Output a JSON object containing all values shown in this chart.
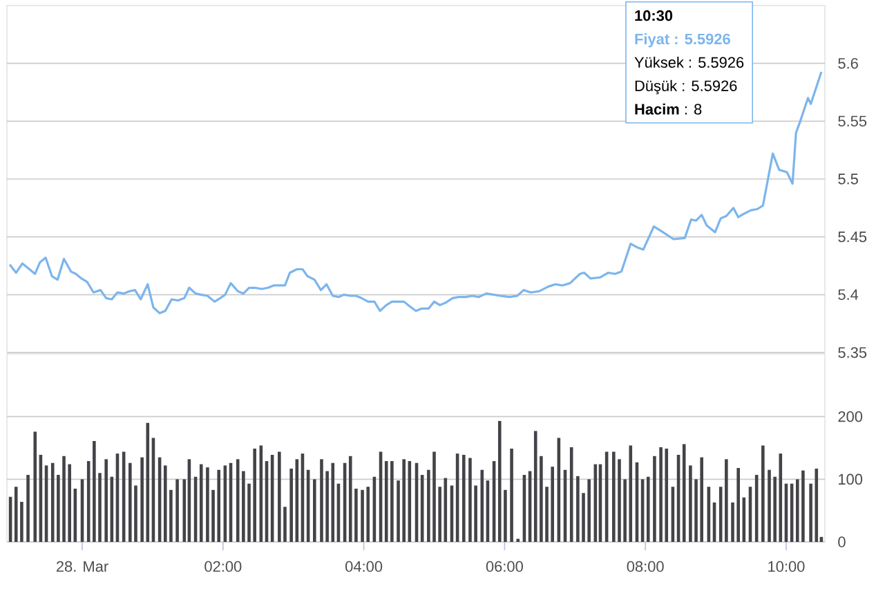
{
  "chart_data": [
    {
      "type": "line",
      "xlim": [
        -1.07,
        10.55
      ],
      "ylim": [
        5.35,
        5.65
      ],
      "yticks": [
        5.35,
        5.4,
        5.45,
        5.5,
        5.55,
        5.6
      ],
      "grid": "y",
      "tick_labels": "y",
      "series": [
        {
          "color": "#7cb5ec",
          "x": [
            -1.03,
            -0.94,
            -0.85,
            -0.75,
            -0.67,
            -0.6,
            -0.52,
            -0.43,
            -0.35,
            -0.26,
            -0.16,
            -0.09,
            -0.01,
            0.07,
            0.16,
            0.26,
            0.34,
            0.42,
            0.5,
            0.59,
            0.67,
            0.75,
            0.83,
            0.93,
            1.01,
            1.1,
            1.18,
            1.27,
            1.36,
            1.45,
            1.52,
            1.61,
            1.69,
            1.78,
            1.88,
            1.96,
            2.03,
            2.11,
            2.21,
            2.29,
            2.37,
            2.45,
            2.55,
            2.64,
            2.72,
            2.88,
            2.95,
            3.05,
            3.13,
            3.2,
            3.3,
            3.39,
            3.47,
            3.56,
            3.64,
            3.72,
            3.81,
            3.89,
            3.97,
            4.06,
            4.15,
            4.23,
            4.32,
            4.4,
            4.48,
            4.57,
            4.65,
            4.74,
            4.82,
            4.92,
            5.0,
            5.08,
            5.16,
            5.26,
            5.35,
            5.45,
            5.54,
            5.63,
            5.74,
            5.85,
            5.94,
            6.07,
            6.18,
            6.27,
            6.37,
            6.49,
            6.62,
            6.72,
            6.82,
            6.93,
            7.07,
            7.13,
            7.22,
            7.36,
            7.47,
            7.57,
            7.66,
            7.79,
            7.88,
            7.97,
            8.12,
            8.25,
            8.4,
            8.56,
            8.65,
            8.72,
            8.8,
            8.87,
            8.99,
            9.07,
            9.15,
            9.25,
            9.32,
            9.4,
            9.5,
            9.59,
            9.67,
            9.81,
            9.9,
            10.01,
            10.09,
            10.14,
            10.2,
            10.31,
            10.35,
            10.5
          ],
          "values": [
            5.426,
            5.419,
            5.427,
            5.422,
            5.418,
            5.428,
            5.432,
            5.416,
            5.413,
            5.431,
            5.42,
            5.418,
            5.414,
            5.411,
            5.402,
            5.404,
            5.397,
            5.396,
            5.402,
            5.401,
            5.403,
            5.404,
            5.396,
            5.409,
            5.389,
            5.384,
            5.386,
            5.396,
            5.395,
            5.397,
            5.406,
            5.401,
            5.4,
            5.399,
            5.394,
            5.397,
            5.4,
            5.41,
            5.403,
            5.401,
            5.406,
            5.406,
            5.405,
            5.406,
            5.408,
            5.408,
            5.419,
            5.422,
            5.422,
            5.416,
            5.413,
            5.404,
            5.409,
            5.399,
            5.398,
            5.4,
            5.399,
            5.399,
            5.397,
            5.394,
            5.394,
            5.386,
            5.391,
            5.394,
            5.394,
            5.394,
            5.39,
            5.386,
            5.388,
            5.388,
            5.394,
            5.391,
            5.393,
            5.397,
            5.398,
            5.398,
            5.399,
            5.398,
            5.401,
            5.4,
            5.399,
            5.398,
            5.399,
            5.404,
            5.402,
            5.403,
            5.407,
            5.409,
            5.408,
            5.41,
            5.418,
            5.419,
            5.414,
            5.415,
            5.419,
            5.418,
            5.42,
            5.444,
            5.441,
            5.439,
            5.459,
            5.454,
            5.448,
            5.449,
            5.465,
            5.464,
            5.469,
            5.46,
            5.454,
            5.466,
            5.468,
            5.475,
            5.467,
            5.47,
            5.473,
            5.474,
            5.477,
            5.522,
            5.508,
            5.506,
            5.496,
            5.54,
            5.55,
            5.57,
            5.565,
            5.5926
          ]
        }
      ],
      "annotations": [
        "10:30",
        "Fiyat : 5.5926",
        "Yüksek : 5.5926",
        "Düşük : 5.5926",
        "**Hacim** : 8"
      ]
    },
    {
      "type": "bar",
      "xlim": [
        -1.07,
        10.55
      ],
      "ylim": [
        0,
        300
      ],
      "yticks": [
        0,
        100,
        200
      ],
      "grid": "y",
      "xticks": [
        {
          "value": 0,
          "label": "28. Mar"
        },
        {
          "value": 2,
          "label": "02:00"
        },
        {
          "value": 4,
          "label": "04:00"
        },
        {
          "value": 6,
          "label": "06:00"
        },
        {
          "value": 8,
          "label": "08:00"
        },
        {
          "value": 10,
          "label": "10:00"
        }
      ],
      "series": [
        {
          "color": "#434348",
          "x": [
            -1.02,
            -0.94,
            -0.86,
            -0.77,
            -0.67,
            -0.59,
            -0.51,
            -0.42,
            -0.34,
            -0.26,
            -0.18,
            -0.1,
            0.0,
            0.09,
            0.17,
            0.25,
            0.34,
            0.42,
            0.5,
            0.59,
            0.68,
            0.76,
            0.85,
            0.93,
            1.01,
            1.1,
            1.18,
            1.26,
            1.35,
            1.45,
            1.52,
            1.61,
            1.69,
            1.78,
            1.86,
            1.94,
            2.03,
            2.11,
            2.21,
            2.29,
            2.37,
            2.45,
            2.54,
            2.62,
            2.7,
            2.8,
            2.88,
            2.97,
            3.05,
            3.13,
            3.21,
            3.3,
            3.4,
            3.48,
            3.56,
            3.64,
            3.73,
            3.81,
            3.89,
            3.98,
            4.06,
            4.15,
            4.24,
            4.32,
            4.4,
            4.49,
            4.57,
            4.65,
            4.75,
            4.83,
            4.92,
            5.0,
            5.08,
            5.16,
            5.25,
            5.33,
            5.42,
            5.51,
            5.59,
            5.68,
            5.76,
            5.85,
            5.93,
            6.01,
            6.1,
            6.19,
            6.28,
            6.36,
            6.44,
            6.52,
            6.6,
            6.68,
            6.77,
            6.86,
            6.95,
            7.04,
            7.12,
            7.2,
            7.29,
            7.36,
            7.45,
            7.55,
            7.63,
            7.71,
            7.79,
            7.88,
            7.96,
            8.04,
            8.13,
            8.22,
            8.3,
            8.39,
            8.47,
            8.55,
            8.64,
            8.72,
            8.8,
            8.9,
            8.98,
            9.07,
            9.15,
            9.24,
            9.32,
            9.4,
            9.49,
            9.58,
            9.67,
            9.76,
            9.84,
            9.92,
            10.0,
            10.08,
            10.16,
            10.24,
            10.35,
            10.43,
            10.5
          ],
          "values": [
            72,
            88,
            64,
            107,
            176,
            139,
            122,
            126,
            107,
            137,
            124,
            85,
            100,
            129,
            161,
            110,
            132,
            104,
            141,
            144,
            126,
            90,
            135,
            190,
            166,
            135,
            122,
            83,
            100,
            100,
            132,
            104,
            124,
            119,
            83,
            115,
            122,
            126,
            132,
            113,
            93,
            149,
            154,
            129,
            139,
            144,
            56,
            117,
            132,
            141,
            115,
            100,
            132,
            113,
            126,
            93,
            126,
            137,
            85,
            83,
            88,
            104,
            144,
            129,
            129,
            98,
            132,
            129,
            126,
            107,
            115,
            144,
            88,
            102,
            90,
            141,
            139,
            134,
            90,
            115,
            98,
            129,
            193,
            83,
            149,
            5,
            107,
            113,
            177,
            137,
            88,
            120,
            166,
            115,
            151,
            105,
            78,
            100,
            124,
            124,
            144,
            144,
            132,
            100,
            154,
            127,
            100,
            104,
            137,
            151,
            149,
            88,
            139,
            156,
            122,
            100,
            135,
            88,
            63,
            88,
            132,
            63,
            118,
            71,
            88,
            107,
            154,
            115,
            104,
            141,
            93,
            93,
            100,
            114,
            93,
            117,
            8
          ]
        }
      ]
    }
  ]
}
